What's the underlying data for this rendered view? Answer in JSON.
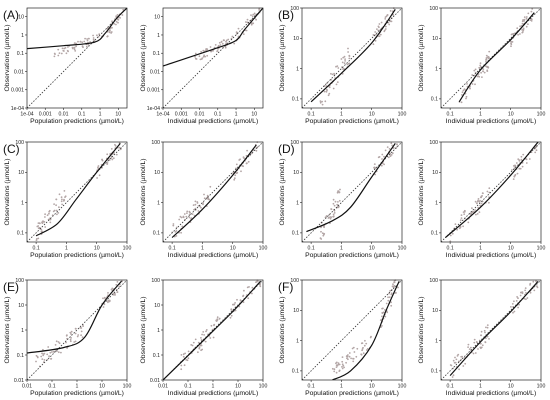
{
  "chart_data": [
    {
      "type": "scatter",
      "panel_label": "(A)",
      "xlabel": "Population predictions (µmol/L)",
      "ylabel": "Observations (µmol/L)",
      "xlim": [
        0.0001,
        30
      ],
      "ylim": [
        0.0001,
        30
      ],
      "x_tick_values": [
        0.0001,
        0.001,
        0.01,
        0.1,
        1,
        10
      ],
      "x_tick_labels": [
        "1e-04",
        "0.001",
        "0.01",
        "0.1",
        "1",
        "10"
      ],
      "y_tick_values": [
        0.0001,
        0.001,
        0.01,
        0.1,
        1,
        10
      ],
      "y_tick_labels": [
        "1e-04",
        "0.001",
        "0.01",
        "0.1",
        "1",
        "10"
      ],
      "scale": "log",
      "has_identity_line": true,
      "fit_curve": [
        [
          0.0001,
          0.18
        ],
        [
          0.01,
          0.26
        ],
        [
          0.5,
          0.4
        ],
        [
          2,
          1.3
        ],
        [
          8,
          8
        ],
        [
          30,
          30
        ]
      ],
      "point_clusters": [
        {
          "x": [
            0.003,
            1.5
          ],
          "y": [
            0.08,
            0.9
          ],
          "n": 60
        },
        {
          "x": [
            2,
            20
          ],
          "y": [
            1,
            20
          ],
          "n": 35
        }
      ]
    },
    {
      "type": "scatter",
      "panel_label": "",
      "xlabel": "Individual predictions (µmol/L)",
      "ylabel": "Observations (µmol/L)",
      "xlim": [
        0.0001,
        30
      ],
      "ylim": [
        0.0001,
        30
      ],
      "x_tick_values": [
        0.0001,
        0.001,
        0.01,
        0.1,
        1,
        10
      ],
      "x_tick_labels": [
        "1e-04",
        "0.001",
        "0.01",
        "0.1",
        "1",
        "10"
      ],
      "y_tick_values": [
        0.0001,
        0.001,
        0.01,
        0.1,
        1,
        10
      ],
      "y_tick_labels": [
        "1e-04",
        "0.001",
        "0.01",
        "0.1",
        "1",
        "10"
      ],
      "scale": "log",
      "has_identity_line": true,
      "fit_curve": [
        [
          0.0001,
          0.02
        ],
        [
          0.1,
          0.2
        ],
        [
          1,
          0.5
        ],
        [
          3,
          2
        ],
        [
          30,
          30
        ]
      ],
      "point_clusters": [
        {
          "x": [
            0.005,
            0.9
          ],
          "y": [
            0.05,
            0.6
          ],
          "n": 55
        },
        {
          "x": [
            1,
            20
          ],
          "y": [
            0.8,
            20
          ],
          "n": 40
        }
      ]
    },
    {
      "type": "scatter",
      "panel_label": "(B)",
      "xlabel": "Population predictions (µmol/L)",
      "ylabel": "Observations (µmol/L)",
      "xlim": [
        0.05,
        100
      ],
      "ylim": [
        0.05,
        100
      ],
      "x_tick_values": [
        0.1,
        1,
        10,
        100
      ],
      "x_tick_labels": [
        "0.1",
        "1",
        "10",
        "100"
      ],
      "y_tick_values": [
        0.1,
        1,
        10,
        100
      ],
      "y_tick_labels": [
        "0.1",
        "1",
        "10",
        "100"
      ],
      "scale": "log",
      "has_identity_line": true,
      "fit_curve": [
        [
          0.1,
          0.08
        ],
        [
          1,
          0.7
        ],
        [
          10,
          7
        ],
        [
          60,
          90
        ]
      ],
      "point_clusters": [
        {
          "x": [
            0.2,
            2
          ],
          "y": [
            0.1,
            3
          ],
          "n": 55
        },
        {
          "x": [
            10,
            60
          ],
          "y": [
            8,
            90
          ],
          "n": 45
        }
      ]
    },
    {
      "type": "scatter",
      "panel_label": "",
      "xlabel": "Individual predictions (µmol/L)",
      "ylabel": "Observations (µmol/L)",
      "xlim": [
        0.05,
        100
      ],
      "ylim": [
        0.05,
        100
      ],
      "x_tick_values": [
        0.1,
        1,
        10,
        100
      ],
      "x_tick_labels": [
        "0.1",
        "1",
        "10",
        "100"
      ],
      "y_tick_values": [
        0.1,
        1,
        10,
        100
      ],
      "y_tick_labels": [
        "0.1",
        "1",
        "10",
        "100"
      ],
      "scale": "log",
      "has_identity_line": true,
      "fit_curve": [
        [
          0.2,
          0.08
        ],
        [
          1,
          0.9
        ],
        [
          10,
          9
        ],
        [
          60,
          70
        ]
      ],
      "point_clusters": [
        {
          "x": [
            0.2,
            2
          ],
          "y": [
            0.1,
            2
          ],
          "n": 55
        },
        {
          "x": [
            10,
            60
          ],
          "y": [
            8,
            80
          ],
          "n": 45
        }
      ]
    },
    {
      "type": "scatter",
      "panel_label": "(C)",
      "xlabel": "Population predictions (µmol/L)",
      "ylabel": "Observations (µmol/L)",
      "xlim": [
        0.05,
        100
      ],
      "ylim": [
        0.05,
        100
      ],
      "x_tick_values": [
        0.1,
        1,
        10,
        100
      ],
      "x_tick_labels": [
        "0.1",
        "1",
        "10",
        "100"
      ],
      "y_tick_values": [
        0.1,
        1,
        10,
        100
      ],
      "y_tick_labels": [
        "0.1",
        "1",
        "10",
        "100"
      ],
      "scale": "log",
      "has_identity_line": true,
      "fit_curve": [
        [
          0.1,
          0.08
        ],
        [
          0.5,
          0.2
        ],
        [
          2,
          1.2
        ],
        [
          10,
          10
        ],
        [
          60,
          90
        ]
      ],
      "point_clusters": [
        {
          "x": [
            0.1,
            1
          ],
          "y": [
            0.1,
            2
          ],
          "n": 55
        },
        {
          "x": [
            10,
            70
          ],
          "y": [
            10,
            100
          ],
          "n": 45
        }
      ]
    },
    {
      "type": "scatter",
      "panel_label": "",
      "xlabel": "Individual predictions (µmol/L)",
      "ylabel": "Observations (µmol/L)",
      "xlim": [
        0.05,
        100
      ],
      "ylim": [
        0.05,
        100
      ],
      "x_tick_values": [
        0.1,
        1,
        10,
        100
      ],
      "x_tick_labels": [
        "0.1",
        "1",
        "10",
        "100"
      ],
      "y_tick_values": [
        0.1,
        1,
        10,
        100
      ],
      "y_tick_labels": [
        "0.1",
        "1",
        "10",
        "100"
      ],
      "scale": "log",
      "has_identity_line": true,
      "fit_curve": [
        [
          0.1,
          0.07
        ],
        [
          1,
          0.6
        ],
        [
          10,
          8
        ],
        [
          60,
          80
        ]
      ],
      "point_clusters": [
        {
          "x": [
            0.1,
            2
          ],
          "y": [
            0.1,
            2
          ],
          "n": 60
        },
        {
          "x": [
            10,
            70
          ],
          "y": [
            8,
            100
          ],
          "n": 40
        }
      ]
    },
    {
      "type": "scatter",
      "panel_label": "(D)",
      "xlabel": "Population predictions (µmol/L)",
      "ylabel": "Observations (µmol/L)",
      "xlim": [
        0.05,
        100
      ],
      "ylim": [
        0.05,
        100
      ],
      "x_tick_values": [
        0.1,
        1,
        10,
        100
      ],
      "x_tick_labels": [
        "0.1",
        "1",
        "10",
        "100"
      ],
      "y_tick_values": [
        0.1,
        1,
        10,
        100
      ],
      "y_tick_labels": [
        "0.1",
        "1",
        "10",
        "100"
      ],
      "scale": "log",
      "has_identity_line": true,
      "fit_curve": [
        [
          0.07,
          0.11
        ],
        [
          0.5,
          0.25
        ],
        [
          2,
          0.7
        ],
        [
          10,
          7
        ],
        [
          60,
          90
        ]
      ],
      "point_clusters": [
        {
          "x": [
            0.2,
            1
          ],
          "y": [
            0.1,
            2
          ],
          "n": 55
        },
        {
          "x": [
            10,
            70
          ],
          "y": [
            10,
            100
          ],
          "n": 45
        }
      ]
    },
    {
      "type": "scatter",
      "panel_label": "",
      "xlabel": "Individual predictions (µmol/L)",
      "ylabel": "Observations (µmol/L)",
      "xlim": [
        0.05,
        100
      ],
      "ylim": [
        0.05,
        100
      ],
      "x_tick_values": [
        0.1,
        1,
        10,
        100
      ],
      "x_tick_labels": [
        "0.1",
        "1",
        "10",
        "100"
      ],
      "y_tick_values": [
        0.1,
        1,
        10,
        100
      ],
      "y_tick_labels": [
        "0.1",
        "1",
        "10",
        "100"
      ],
      "scale": "log",
      "has_identity_line": true,
      "fit_curve": [
        [
          0.07,
          0.07
        ],
        [
          1,
          0.7
        ],
        [
          10,
          8
        ],
        [
          80,
          100
        ]
      ],
      "point_clusters": [
        {
          "x": [
            0.1,
            2
          ],
          "y": [
            0.1,
            2
          ],
          "n": 60
        },
        {
          "x": [
            10,
            80
          ],
          "y": [
            8,
            100
          ],
          "n": 40
        }
      ]
    },
    {
      "type": "scatter",
      "panel_label": "(E)",
      "xlabel": "Population predictions (µmol/L)",
      "ylabel": "Observations (µmol/L)",
      "xlim": [
        0.01,
        100
      ],
      "ylim": [
        0.01,
        100
      ],
      "x_tick_values": [
        0.01,
        0.1,
        1,
        10,
        100
      ],
      "x_tick_labels": [
        "0.01",
        "0.1",
        "1",
        "10",
        "100"
      ],
      "y_tick_values": [
        0.01,
        0.1,
        1,
        10,
        100
      ],
      "y_tick_labels": [
        "0.01",
        "0.1",
        "1",
        "10",
        "100"
      ],
      "scale": "log",
      "has_identity_line": true,
      "fit_curve": [
        [
          0.01,
          0.12
        ],
        [
          0.3,
          0.2
        ],
        [
          2,
          0.5
        ],
        [
          10,
          10
        ],
        [
          60,
          90
        ]
      ],
      "point_clusters": [
        {
          "x": [
            0.02,
            2
          ],
          "y": [
            0.05,
            1
          ],
          "n": 60
        },
        {
          "x": [
            10,
            70
          ],
          "y": [
            10,
            100
          ],
          "n": 40
        }
      ]
    },
    {
      "type": "scatter",
      "panel_label": "",
      "xlabel": "Individual predictions (µmol/L)",
      "ylabel": "Observations (µmol/L)",
      "xlim": [
        0.01,
        100
      ],
      "ylim": [
        0.01,
        100
      ],
      "x_tick_values": [
        0.01,
        0.1,
        1,
        10,
        100
      ],
      "x_tick_labels": [
        "0.01",
        "0.1",
        "1",
        "10",
        "100"
      ],
      "y_tick_values": [
        0.01,
        0.1,
        1,
        10,
        100
      ],
      "y_tick_labels": [
        "0.01",
        "0.1",
        "1",
        "10",
        "100"
      ],
      "scale": "log",
      "has_identity_line": true,
      "fit_curve": [
        [
          0.01,
          0.01
        ],
        [
          1,
          0.9
        ],
        [
          10,
          9
        ],
        [
          80,
          90
        ]
      ],
      "point_clusters": [
        {
          "x": [
            0.05,
            2
          ],
          "y": [
            0.05,
            2
          ],
          "n": 60
        },
        {
          "x": [
            5,
            80
          ],
          "y": [
            5,
            100
          ],
          "n": 40
        }
      ]
    },
    {
      "type": "scatter",
      "panel_label": "(F)",
      "xlabel": "Population predictions (µmol/L)",
      "ylabel": "Observations (µmol/L)",
      "xlim": [
        0.05,
        100
      ],
      "ylim": [
        0.05,
        100
      ],
      "x_tick_values": [
        0.1,
        1,
        10,
        100
      ],
      "x_tick_labels": [
        "0.1",
        "1",
        "10",
        "100"
      ],
      "y_tick_values": [
        0.1,
        1,
        10,
        100
      ],
      "y_tick_labels": [
        "0.1",
        "1",
        "10",
        "100"
      ],
      "scale": "log",
      "has_identity_line": true,
      "fit_curve": [
        [
          0.5,
          0.05
        ],
        [
          2,
          0.1
        ],
        [
          10,
          0.7
        ],
        [
          30,
          10
        ],
        [
          80,
          90
        ]
      ],
      "point_clusters": [
        {
          "x": [
            0.5,
            10
          ],
          "y": [
            0.1,
            1
          ],
          "n": 55
        },
        {
          "x": [
            20,
            80
          ],
          "y": [
            5,
            100
          ],
          "n": 45
        }
      ]
    },
    {
      "type": "scatter",
      "panel_label": "",
      "xlabel": "Individual predictions (µmol/L)",
      "ylabel": "Observations (µmol/L)",
      "xlim": [
        0.05,
        100
      ],
      "ylim": [
        0.05,
        100
      ],
      "x_tick_values": [
        0.1,
        1,
        10,
        100
      ],
      "x_tick_labels": [
        "0.1",
        "1",
        "10",
        "100"
      ],
      "y_tick_values": [
        0.1,
        1,
        10,
        100
      ],
      "y_tick_labels": [
        "0.1",
        "1",
        "10",
        "100"
      ],
      "scale": "log",
      "has_identity_line": true,
      "fit_curve": [
        [
          0.1,
          0.07
        ],
        [
          1,
          0.9
        ],
        [
          10,
          9
        ],
        [
          80,
          90
        ]
      ],
      "point_clusters": [
        {
          "x": [
            0.1,
            2
          ],
          "y": [
            0.1,
            2
          ],
          "n": 60
        },
        {
          "x": [
            10,
            80
          ],
          "y": [
            10,
            100
          ],
          "n": 40
        }
      ]
    }
  ],
  "colors": {
    "points": "#b3a6a6",
    "fit_line": "#111111",
    "identity_line": "#333333",
    "frame": "#222222"
  }
}
